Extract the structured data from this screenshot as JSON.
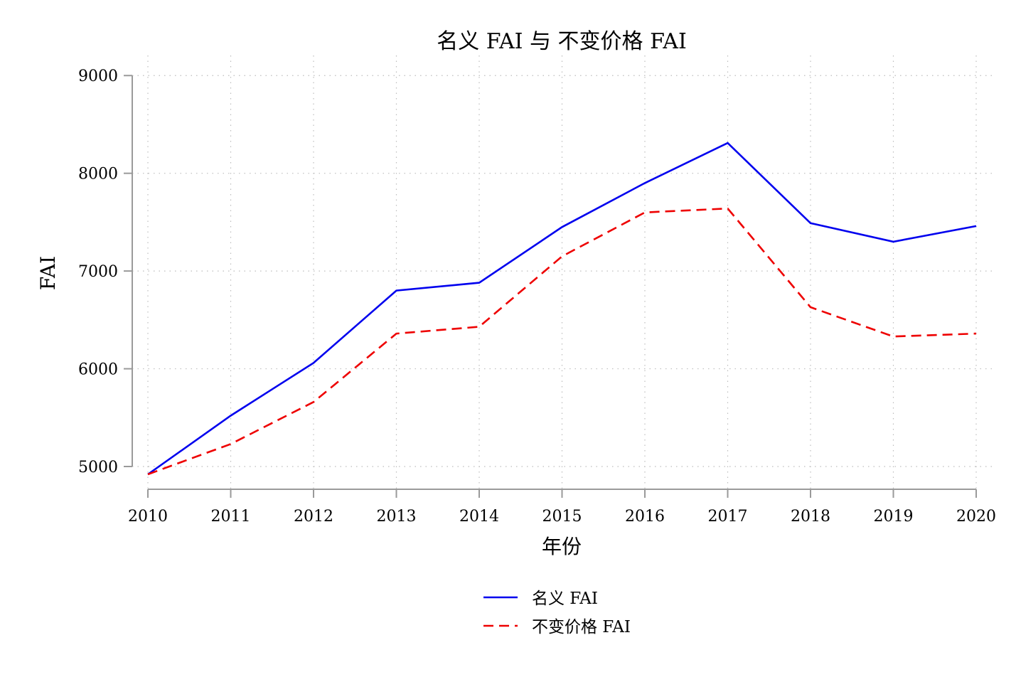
{
  "chart_data": {
    "type": "line",
    "title": "名义 FAI 与 不变价格 FAI",
    "xlabel": "年份",
    "ylabel": "FAI",
    "x": [
      2010,
      2011,
      2012,
      2013,
      2014,
      2015,
      2016,
      2017,
      2018,
      2019,
      2020
    ],
    "x_tick_labels": [
      "2010",
      "2011",
      "2012",
      "2013",
      "2014",
      "2015",
      "2016",
      "2017",
      "2018",
      "2019",
      "2020"
    ],
    "y_ticks": [
      5000,
      6000,
      7000,
      8000,
      9000
    ],
    "y_tick_labels": [
      "5000",
      "6000",
      "7000",
      "8000",
      "9000"
    ],
    "xlim": [
      2010,
      2020
    ],
    "ylim": [
      4920,
      9060
    ],
    "grid": true,
    "legend_position": "bottom-center",
    "series": [
      {
        "name": "名义 FAI",
        "color": "#0000ee",
        "style": "solid",
        "values": [
          4920,
          5520,
          6060,
          6800,
          6880,
          7450,
          7900,
          8310,
          7490,
          7300,
          7460
        ]
      },
      {
        "name": "不变价格 FAI",
        "color": "#ee0000",
        "style": "dashed",
        "values": [
          4920,
          5230,
          5660,
          6360,
          6430,
          7150,
          7600,
          7640,
          6630,
          6330,
          6360
        ]
      }
    ]
  }
}
